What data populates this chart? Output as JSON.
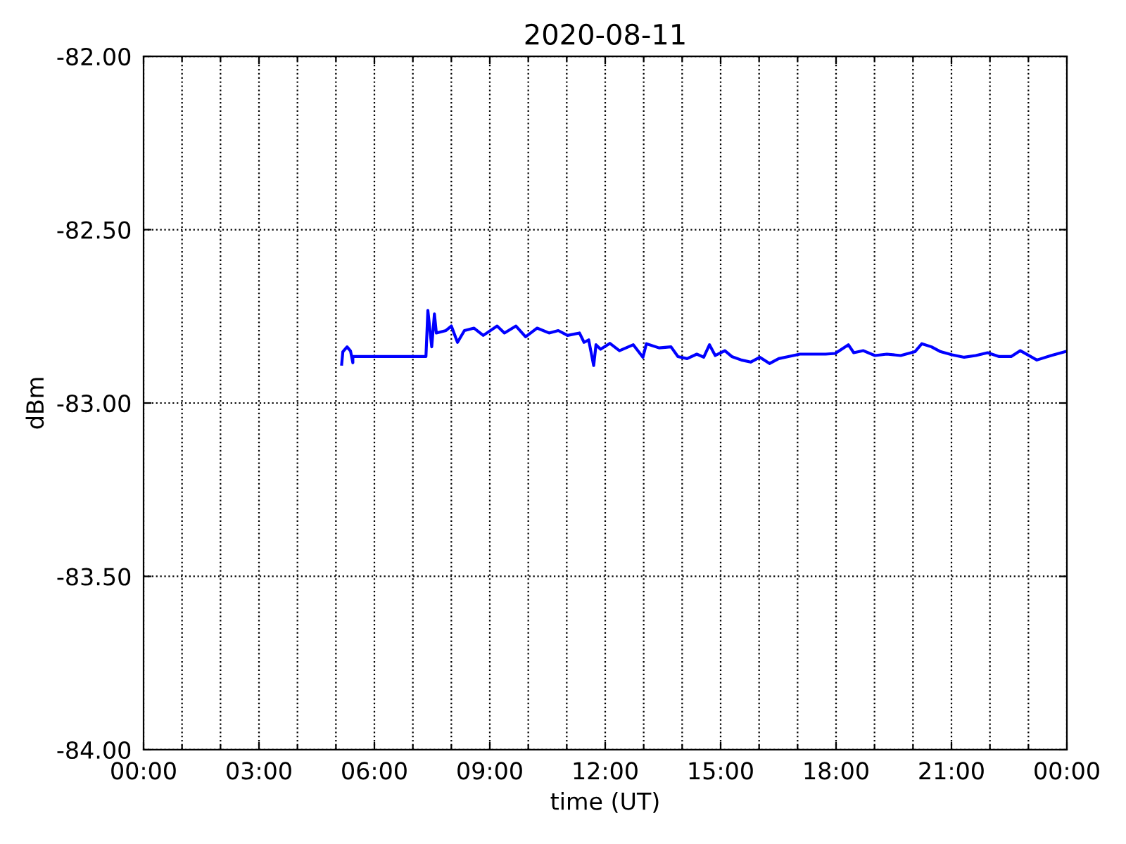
{
  "chart_data": {
    "type": "line",
    "title": "2020-08-11",
    "xlabel": "time (UT)",
    "ylabel": "dBm",
    "xlim": [
      0,
      24
    ],
    "xticks": [
      {
        "value": 0,
        "label": "00:00"
      },
      {
        "value": 1,
        "label": null
      },
      {
        "value": 2,
        "label": null
      },
      {
        "value": 3,
        "label": "03:00"
      },
      {
        "value": 4,
        "label": null
      },
      {
        "value": 5,
        "label": null
      },
      {
        "value": 6,
        "label": "06:00"
      },
      {
        "value": 7,
        "label": null
      },
      {
        "value": 8,
        "label": null
      },
      {
        "value": 9,
        "label": "09:00"
      },
      {
        "value": 10,
        "label": null
      },
      {
        "value": 11,
        "label": null
      },
      {
        "value": 12,
        "label": "12:00"
      },
      {
        "value": 13,
        "label": null
      },
      {
        "value": 14,
        "label": null
      },
      {
        "value": 15,
        "label": "15:00"
      },
      {
        "value": 16,
        "label": null
      },
      {
        "value": 17,
        "label": null
      },
      {
        "value": 18,
        "label": "18:00"
      },
      {
        "value": 19,
        "label": null
      },
      {
        "value": 20,
        "label": null
      },
      {
        "value": 21,
        "label": "21:00"
      },
      {
        "value": 22,
        "label": null
      },
      {
        "value": 23,
        "label": null
      },
      {
        "value": 24,
        "label": "00:00"
      }
    ],
    "ylim": [
      -84,
      -82
    ],
    "yticks": [
      {
        "value": -84,
        "label": "-84.00"
      },
      {
        "value": -83.5,
        "label": "-83.50"
      },
      {
        "value": -83,
        "label": "-83.00"
      },
      {
        "value": -82.5,
        "label": "-82.50"
      },
      {
        "value": -82,
        "label": "-82.00"
      }
    ],
    "grid": true,
    "marker": "none",
    "line_style": "solid",
    "series": [
      {
        "color": "#0000ff",
        "x": [
          5.15,
          5.18,
          5.29,
          5.38,
          5.44,
          5.44,
          7.34,
          7.39,
          7.49,
          7.56,
          7.61,
          7.86,
          8.0,
          8.16,
          8.34,
          8.59,
          8.83,
          9.19,
          9.38,
          9.68,
          9.93,
          10.23,
          10.54,
          10.78,
          11.02,
          11.33,
          11.45,
          11.57,
          11.7,
          11.76,
          11.88,
          12.12,
          12.37,
          12.73,
          12.98,
          13.07,
          13.4,
          13.71,
          13.89,
          14.13,
          14.38,
          14.56,
          14.71,
          14.86,
          15.11,
          15.29,
          15.54,
          15.78,
          16.02,
          16.27,
          16.51,
          16.76,
          17.06,
          17.37,
          17.73,
          17.98,
          18.32,
          18.46,
          18.71,
          19.01,
          19.32,
          19.68,
          20.05,
          20.23,
          20.48,
          20.72,
          21.02,
          21.33,
          21.63,
          21.94,
          22.24,
          22.55,
          22.79,
          23.22,
          23.59,
          23.95
        ],
        "values": [
          -82.888,
          -82.852,
          -82.838,
          -82.85,
          -82.884,
          -82.866,
          -82.866,
          -82.733,
          -82.838,
          -82.743,
          -82.798,
          -82.791,
          -82.778,
          -82.825,
          -82.791,
          -82.784,
          -82.805,
          -82.778,
          -82.798,
          -82.778,
          -82.809,
          -82.784,
          -82.798,
          -82.791,
          -82.805,
          -82.798,
          -82.825,
          -82.818,
          -82.892,
          -82.832,
          -82.845,
          -82.828,
          -82.849,
          -82.832,
          -82.868,
          -82.829,
          -82.841,
          -82.838,
          -82.866,
          -82.872,
          -82.859,
          -82.868,
          -82.832,
          -82.863,
          -82.849,
          -82.866,
          -82.876,
          -82.882,
          -82.868,
          -82.886,
          -82.872,
          -82.866,
          -82.859,
          -82.859,
          -82.859,
          -82.857,
          -82.832,
          -82.855,
          -82.849,
          -82.863,
          -82.859,
          -82.863,
          -82.852,
          -82.829,
          -82.838,
          -82.852,
          -82.861,
          -82.868,
          -82.863,
          -82.855,
          -82.866,
          -82.866,
          -82.849,
          -82.876,
          -82.863,
          -82.852
        ]
      }
    ]
  }
}
